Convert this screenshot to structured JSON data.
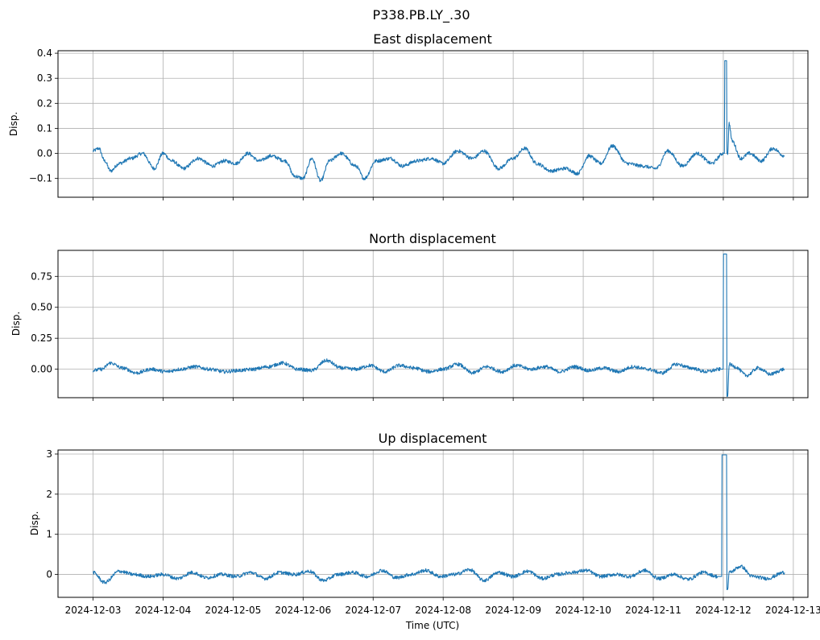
{
  "figure": {
    "suptitle": "P338.PB.LY_.30",
    "xlabel": "Time (UTC)",
    "line_color": "#1f77b4",
    "grid_color": "#b0b0b0"
  },
  "chart_data": [
    {
      "type": "line",
      "title": "East displacement",
      "ylabel": "Disp.",
      "xlim": [
        "2024-12-02T12:00",
        "2024-12-13T05:00"
      ],
      "ylim": [
        -0.175,
        0.41
      ],
      "yticks": [
        -0.1,
        0.0,
        0.1,
        0.2,
        0.3,
        0.4
      ],
      "ytick_labels": [
        "−0.1",
        "0.0",
        "0.1",
        "0.2",
        "0.3",
        "0.4"
      ],
      "grid": true,
      "series": [
        {
          "x": [
            "2024-12-03T00:00",
            "2024-12-03T02:00",
            "2024-12-03T04:00",
            "2024-12-03T06:00",
            "2024-12-03T09:00",
            "2024-12-03T13:00",
            "2024-12-03T17:00",
            "2024-12-03T21:00",
            "2024-12-04T00:00",
            "2024-12-04T03:00",
            "2024-12-04T07:00",
            "2024-12-04T12:00",
            "2024-12-04T17:00",
            "2024-12-04T21:00",
            "2024-12-05T01:00",
            "2024-12-05T05:00",
            "2024-12-05T09:00",
            "2024-12-05T13:00",
            "2024-12-05T18:00",
            "2024-12-05T21:00",
            "2024-12-06T00:00",
            "2024-12-06T03:00",
            "2024-12-06T06:00",
            "2024-12-06T09:00",
            "2024-12-06T13:00",
            "2024-12-06T18:00",
            "2024-12-06T21:00",
            "2024-12-07T01:00",
            "2024-12-07T06:00",
            "2024-12-07T10:00",
            "2024-12-07T15:00",
            "2024-12-07T20:00",
            "2024-12-08T00:00",
            "2024-12-08T05:00",
            "2024-12-08T10:00",
            "2024-12-08T14:00",
            "2024-12-08T19:00",
            "2024-12-09T00:00",
            "2024-12-09T04:00",
            "2024-12-09T08:00",
            "2024-12-09T13:00",
            "2024-12-09T18:00",
            "2024-12-09T22:00",
            "2024-12-10T02:00",
            "2024-12-10T06:00",
            "2024-12-10T10:00",
            "2024-12-10T15:00",
            "2024-12-10T20:00",
            "2024-12-11T01:00",
            "2024-12-11T05:00",
            "2024-12-11T10:00",
            "2024-12-11T15:00",
            "2024-12-11T20:00",
            "2024-12-12T00:00",
            "2024-12-12T01:00",
            "2024-12-12T01:30",
            "2024-12-12T02:00",
            "2024-12-12T03:00",
            "2024-12-12T06:00",
            "2024-12-12T09:00",
            "2024-12-12T13:00",
            "2024-12-12T17:00",
            "2024-12-12T21:00"
          ],
          "y": [
            0.01,
            0.02,
            -0.03,
            -0.07,
            -0.04,
            -0.02,
            0.0,
            -0.06,
            0.0,
            -0.03,
            -0.06,
            -0.02,
            -0.05,
            -0.03,
            -0.04,
            0.0,
            -0.03,
            -0.01,
            -0.03,
            -0.09,
            -0.1,
            -0.02,
            -0.11,
            -0.03,
            0.0,
            -0.05,
            -0.1,
            -0.03,
            -0.02,
            -0.05,
            -0.03,
            -0.02,
            -0.04,
            0.01,
            -0.02,
            0.01,
            -0.06,
            -0.02,
            0.02,
            -0.04,
            -0.07,
            -0.06,
            -0.08,
            -0.01,
            -0.04,
            0.03,
            -0.04,
            -0.05,
            -0.06,
            0.01,
            -0.05,
            0.0,
            -0.04,
            0.0,
            0.37,
            0.0,
            0.12,
            0.05,
            -0.02,
            0.0,
            -0.03,
            0.02,
            -0.01
          ]
        }
      ]
    },
    {
      "type": "line",
      "title": "North displacement",
      "ylabel": "Disp.",
      "xlim": [
        "2024-12-02T12:00",
        "2024-12-13T05:00"
      ],
      "ylim": [
        -0.23,
        0.96
      ],
      "yticks": [
        0.0,
        0.25,
        0.5,
        0.75
      ],
      "ytick_labels": [
        "0.00",
        "0.25",
        "0.50",
        "0.75"
      ],
      "grid": true,
      "series": [
        {
          "x": [
            "2024-12-03T00:00",
            "2024-12-03T03:00",
            "2024-12-03T06:00",
            "2024-12-03T10:00",
            "2024-12-03T15:00",
            "2024-12-03T20:00",
            "2024-12-04T01:00",
            "2024-12-04T06:00",
            "2024-12-04T11:00",
            "2024-12-04T16:00",
            "2024-12-04T21:00",
            "2024-12-05T02:00",
            "2024-12-05T07:00",
            "2024-12-05T12:00",
            "2024-12-05T17:00",
            "2024-12-05T22:00",
            "2024-12-06T03:00",
            "2024-12-06T08:00",
            "2024-12-06T13:00",
            "2024-12-06T18:00",
            "2024-12-06T23:00",
            "2024-12-07T04:00",
            "2024-12-07T09:00",
            "2024-12-07T14:00",
            "2024-12-07T19:00",
            "2024-12-08T00:00",
            "2024-12-08T05:00",
            "2024-12-08T10:00",
            "2024-12-08T15:00",
            "2024-12-08T20:00",
            "2024-12-09T01:00",
            "2024-12-09T06:00",
            "2024-12-09T11:00",
            "2024-12-09T16:00",
            "2024-12-09T21:00",
            "2024-12-10T02:00",
            "2024-12-10T07:00",
            "2024-12-10T12:00",
            "2024-12-10T17:00",
            "2024-12-10T22:00",
            "2024-12-11T03:00",
            "2024-12-11T08:00",
            "2024-12-11T13:00",
            "2024-12-11T18:00",
            "2024-12-11T23:00",
            "2024-12-12T01:00",
            "2024-12-12T01:30",
            "2024-12-12T02:00",
            "2024-12-12T04:00",
            "2024-12-12T08:00",
            "2024-12-12T12:00",
            "2024-12-12T16:00",
            "2024-12-12T21:00"
          ],
          "y": [
            -0.01,
            0.0,
            0.05,
            0.01,
            -0.03,
            0.0,
            -0.02,
            0.0,
            0.02,
            0.0,
            -0.02,
            -0.01,
            0.0,
            0.02,
            0.05,
            0.0,
            -0.01,
            0.07,
            0.01,
            0.0,
            0.03,
            -0.02,
            0.03,
            0.01,
            -0.02,
            0.0,
            0.04,
            -0.03,
            0.02,
            -0.02,
            0.03,
            0.0,
            0.02,
            -0.02,
            0.02,
            -0.01,
            0.01,
            -0.02,
            0.02,
            0.0,
            -0.03,
            0.04,
            0.01,
            -0.02,
            0.0,
            0.93,
            -0.22,
            0.04,
            0.02,
            -0.05,
            0.01,
            -0.04,
            0.0
          ]
        }
      ]
    },
    {
      "type": "line",
      "title": "Up displacement",
      "ylabel": "Disp.",
      "xlim": [
        "2024-12-02T12:00",
        "2024-12-13T05:00"
      ],
      "ylim": [
        -0.57,
        3.1
      ],
      "yticks": [
        0,
        1,
        2,
        3
      ],
      "ytick_labels": [
        "0",
        "1",
        "2",
        "3"
      ],
      "grid": true,
      "series": [
        {
          "x": [
            "2024-12-03T00:00",
            "2024-12-03T04:00",
            "2024-12-03T09:00",
            "2024-12-03T14:00",
            "2024-12-03T19:00",
            "2024-12-04T00:00",
            "2024-12-04T05:00",
            "2024-12-04T10:00",
            "2024-12-04T15:00",
            "2024-12-04T20:00",
            "2024-12-05T01:00",
            "2024-12-05T06:00",
            "2024-12-05T11:00",
            "2024-12-05T16:00",
            "2024-12-05T21:00",
            "2024-12-06T02:00",
            "2024-12-06T07:00",
            "2024-12-06T12:00",
            "2024-12-06T17:00",
            "2024-12-06T22:00",
            "2024-12-07T03:00",
            "2024-12-07T08:00",
            "2024-12-07T13:00",
            "2024-12-07T18:00",
            "2024-12-07T23:00",
            "2024-12-08T04:00",
            "2024-12-08T09:00",
            "2024-12-08T14:00",
            "2024-12-08T19:00",
            "2024-12-09T00:00",
            "2024-12-09T05:00",
            "2024-12-09T10:00",
            "2024-12-09T15:00",
            "2024-12-09T20:00",
            "2024-12-10T01:00",
            "2024-12-10T06:00",
            "2024-12-10T11:00",
            "2024-12-10T16:00",
            "2024-12-10T21:00",
            "2024-12-11T02:00",
            "2024-12-11T07:00",
            "2024-12-11T12:00",
            "2024-12-11T17:00",
            "2024-12-11T22:00",
            "2024-12-12T01:00",
            "2024-12-12T01:30",
            "2024-12-12T02:00",
            "2024-12-12T06:00",
            "2024-12-12T10:00",
            "2024-12-12T15:00",
            "2024-12-12T21:00"
          ],
          "y": [
            0.05,
            -0.2,
            0.08,
            0.0,
            -0.05,
            0.0,
            -0.1,
            0.05,
            -0.08,
            0.0,
            -0.05,
            0.05,
            -0.1,
            0.05,
            0.0,
            0.08,
            -0.15,
            0.0,
            0.05,
            -0.05,
            0.1,
            -0.08,
            0.0,
            0.1,
            -0.05,
            0.0,
            0.12,
            -0.15,
            0.05,
            -0.05,
            0.08,
            -0.1,
            0.0,
            0.05,
            0.1,
            -0.05,
            0.0,
            -0.05,
            0.1,
            -0.1,
            0.0,
            -0.12,
            0.05,
            -0.05,
            2.98,
            -0.38,
            0.05,
            0.2,
            -0.05,
            -0.1,
            0.05
          ]
        }
      ]
    }
  ],
  "xaxis": {
    "tick_labels": [
      "2024-12-03",
      "2024-12-04",
      "2024-12-05",
      "2024-12-06",
      "2024-12-07",
      "2024-12-08",
      "2024-12-09",
      "2024-12-10",
      "2024-12-11",
      "2024-12-12",
      "2024-12-13"
    ]
  }
}
